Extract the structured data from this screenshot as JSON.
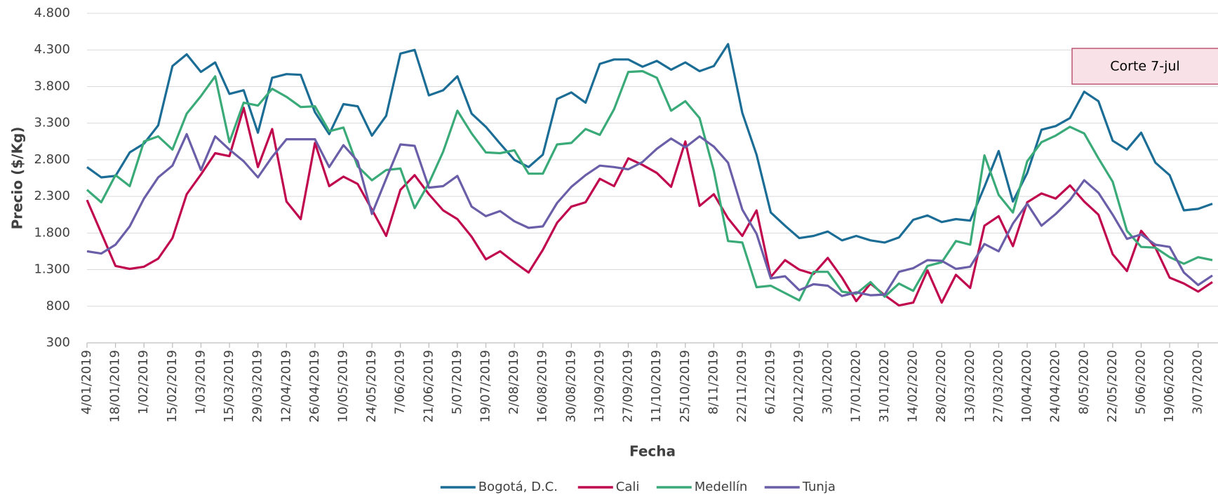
{
  "chart_data": {
    "type": "line",
    "y_label": "Precio ($/Kg)",
    "x_label": "Fecha",
    "annotation": "Corte 7-jul",
    "categories": [
      "4/01/2019",
      null,
      "18/01/2019",
      null,
      "1/02/2019",
      null,
      "15/02/2019",
      null,
      "1/03/2019",
      null,
      "15/03/2019",
      null,
      "29/03/2019",
      null,
      "12/04/2019",
      null,
      "26/04/2019",
      null,
      "10/05/2019",
      null,
      "24/05/2019",
      null,
      "7/06/2019",
      null,
      "21/06/2019",
      null,
      "5/07/2019",
      null,
      "19/07/2019",
      null,
      "2/08/2019",
      null,
      "16/08/2019",
      null,
      "30/08/2019",
      null,
      "13/09/2019",
      null,
      "27/09/2019",
      null,
      "11/10/2019",
      null,
      "25/10/2019",
      null,
      "8/11/2019",
      null,
      "22/11/2019",
      null,
      "6/12/2019",
      null,
      "20/12/2019",
      null,
      "3/01/2020",
      null,
      "17/01/2020",
      null,
      "31/01/2020",
      null,
      "14/02/2020",
      null,
      "28/02/2020",
      null,
      "13/03/2020",
      null,
      "27/03/2020",
      null,
      "10/04/2020",
      null,
      "24/04/2020",
      null,
      "8/05/2020",
      null,
      "22/05/2020",
      null,
      "5/06/2020",
      null,
      "19/06/2020",
      null,
      "3/07/2020",
      null
    ],
    "series": [
      {
        "name": "Bogotá, D.C.",
        "color": "#1b6d96",
        "values": [
          2700,
          2560,
          2580,
          2900,
          3020,
          3270,
          4080,
          4240,
          4000,
          4130,
          3700,
          3750,
          3170,
          3920,
          3970,
          3960,
          3450,
          3150,
          3560,
          3530,
          3130,
          3400,
          4250,
          4300,
          3680,
          3750,
          3940,
          3430,
          3250,
          3020,
          2800,
          2700,
          2870,
          3630,
          3720,
          3580,
          4110,
          4170,
          4170,
          4070,
          4150,
          4030,
          4130,
          4010,
          4080,
          4380,
          3440,
          2870,
          2080,
          1900,
          1730,
          1760,
          1820,
          1700,
          1760,
          1700,
          1670,
          1740,
          1980,
          2040,
          1950,
          1990,
          1970,
          2430,
          2920,
          2230,
          2620,
          3210,
          3260,
          3370,
          3730,
          3600,
          3060,
          2940,
          3170,
          2760,
          2590,
          2110,
          2130,
          2200
        ]
      },
      {
        "name": "Cali",
        "color": "#c0084f",
        "values": [
          2250,
          1800,
          1350,
          1310,
          1340,
          1450,
          1730,
          2330,
          2600,
          2890,
          2850,
          3510,
          2700,
          3220,
          2230,
          1990,
          3030,
          2440,
          2570,
          2470,
          2120,
          1760,
          2390,
          2590,
          2330,
          2110,
          1990,
          1750,
          1440,
          1550,
          1400,
          1260,
          1570,
          1940,
          2160,
          2220,
          2540,
          2440,
          2820,
          2730,
          2620,
          2430,
          3050,
          2170,
          2330,
          2000,
          1760,
          2110,
          1200,
          1430,
          1300,
          1240,
          1460,
          1190,
          870,
          1110,
          950,
          810,
          850,
          1290,
          850,
          1230,
          1050,
          1900,
          2030,
          1620,
          2220,
          2340,
          2270,
          2450,
          2230,
          2050,
          1510,
          1280,
          1830,
          1600,
          1190,
          1110,
          1000,
          1130
        ]
      },
      {
        "name": "Medellín",
        "color": "#3aaa78",
        "values": [
          2390,
          2220,
          2590,
          2440,
          3050,
          3120,
          2940,
          3430,
          3670,
          3940,
          3040,
          3580,
          3540,
          3770,
          3660,
          3520,
          3530,
          3190,
          3240,
          2710,
          2520,
          2660,
          2680,
          2140,
          2480,
          2910,
          3470,
          3160,
          2900,
          2890,
          2930,
          2610,
          2610,
          3010,
          3030,
          3220,
          3140,
          3490,
          4000,
          4010,
          3920,
          3470,
          3600,
          3370,
          2650,
          1690,
          1670,
          1060,
          1080,
          980,
          880,
          1270,
          1270,
          1000,
          970,
          1130,
          930,
          1110,
          1010,
          1350,
          1400,
          1690,
          1640,
          2860,
          2320,
          2080,
          2780,
          3040,
          3130,
          3250,
          3160,
          2820,
          2500,
          1830,
          1610,
          1600,
          1470,
          1380,
          1470,
          1430
        ]
      },
      {
        "name": "Tunja",
        "color": "#6b5ea8",
        "values": [
          1550,
          1520,
          1640,
          1890,
          2270,
          2560,
          2720,
          3150,
          2660,
          3120,
          2940,
          2780,
          2560,
          2840,
          3080,
          3080,
          3080,
          2700,
          3000,
          2780,
          2060,
          2540,
          3010,
          2990,
          2420,
          2440,
          2580,
          2160,
          2030,
          2100,
          1960,
          1870,
          1890,
          2210,
          2430,
          2590,
          2720,
          2700,
          2670,
          2770,
          2950,
          3090,
          2970,
          3120,
          2980,
          2760,
          2120,
          1790,
          1180,
          1210,
          1020,
          1100,
          1080,
          940,
          990,
          950,
          960,
          1270,
          1320,
          1430,
          1420,
          1310,
          1340,
          1650,
          1550,
          1930,
          2200,
          1900,
          2060,
          2250,
          2520,
          2350,
          2050,
          1720,
          1780,
          1640,
          1610,
          1260,
          1090,
          1220
        ]
      }
    ],
    "ylim": [
      300,
      4800
    ],
    "yticks": [
      300,
      800,
      {
        "value": 1300,
        "label": "1.300"
      },
      {
        "value": 1800,
        "label": "1.800"
      },
      {
        "value": 2300,
        "label": "2.300"
      },
      {
        "value": 2800,
        "label": "2.800"
      },
      {
        "value": 3300,
        "label": "3.300"
      },
      {
        "value": 3800,
        "label": "3.800"
      },
      {
        "value": 4300,
        "label": "4.300"
      },
      {
        "value": 4800,
        "label": "4.800"
      }
    ],
    "grid": true,
    "legend": "bottom"
  }
}
